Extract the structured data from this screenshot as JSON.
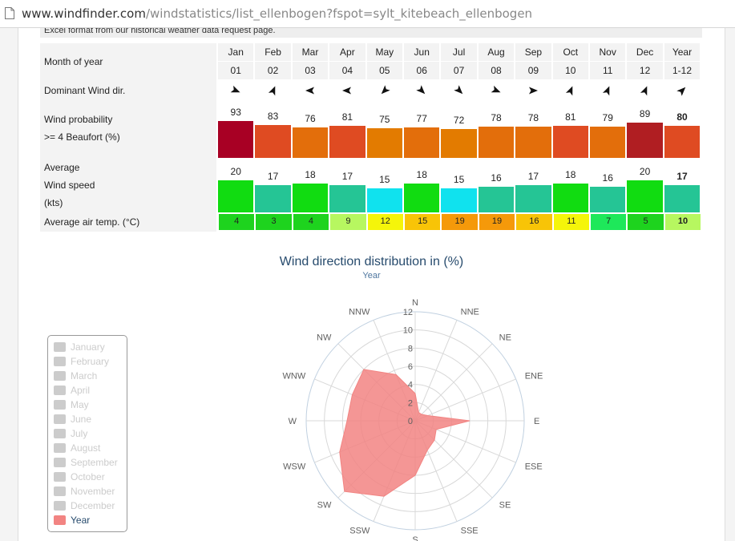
{
  "browser": {
    "url_host": "www.windfinder.com",
    "url_path": "/windstatistics/list_ellenbogen?fspot=sylt_kitebeach_ellenbogen"
  },
  "intro_text": "Excel format from our historical weather data request page.",
  "table": {
    "row_labels": {
      "month": "Month of year",
      "direction": "Dominant Wind dir.",
      "prob_1": "Wind probability",
      "prob_2": ">= 4 Beaufort (%)",
      "speed_1": "Average",
      "speed_2": "Wind speed",
      "speed_3": "(kts)",
      "temp": "Average air temp. (°C)"
    },
    "columns": [
      {
        "name": "Jan",
        "num": "01",
        "dir": "from-WNW",
        "prob": "93",
        "prob_color": "#a80024",
        "speed": "20",
        "speed_color": "#11dc11",
        "temp": "4",
        "temp_color": "#1ed31e"
      },
      {
        "name": "Feb",
        "num": "02",
        "dir": "from-SSW",
        "prob": "83",
        "prob_color": "#df4b22",
        "speed": "17",
        "speed_color": "#25c595",
        "temp": "3",
        "temp_color": "#1ed31e"
      },
      {
        "name": "Mar",
        "num": "03",
        "dir": "from-E",
        "prob": "76",
        "prob_color": "#e36e0b",
        "speed": "18",
        "speed_color": "#11dc11",
        "temp": "4",
        "temp_color": "#1ed31e"
      },
      {
        "name": "Apr",
        "num": "04",
        "dir": "from-E",
        "prob": "81",
        "prob_color": "#df4b22",
        "speed": "17",
        "speed_color": "#25c595",
        "temp": "9",
        "temp_color": "#b7f760"
      },
      {
        "name": "May",
        "num": "05",
        "dir": "from-NE",
        "prob": "75",
        "prob_color": "#e37b00",
        "speed": "15",
        "speed_color": "#10e2ee",
        "temp": "12",
        "temp_color": "#f5f50a"
      },
      {
        "name": "Jun",
        "num": "06",
        "dir": "from-NW",
        "prob": "77",
        "prob_color": "#e36e0b",
        "speed": "18",
        "speed_color": "#11dc11",
        "temp": "15",
        "temp_color": "#f8c407"
      },
      {
        "name": "Jul",
        "num": "07",
        "dir": "from-NW",
        "prob": "72",
        "prob_color": "#e37b00",
        "speed": "15",
        "speed_color": "#10e2ee",
        "temp": "19",
        "temp_color": "#f5990a"
      },
      {
        "name": "Aug",
        "num": "08",
        "dir": "from-WNW",
        "prob": "78",
        "prob_color": "#e36e0b",
        "speed": "16",
        "speed_color": "#25c595",
        "temp": "19",
        "temp_color": "#f5990a"
      },
      {
        "name": "Sep",
        "num": "09",
        "dir": "from-W",
        "prob": "78",
        "prob_color": "#e36e0b",
        "speed": "17",
        "speed_color": "#25c595",
        "temp": "16",
        "temp_color": "#f8c407"
      },
      {
        "name": "Oct",
        "num": "10",
        "dir": "from-SSW",
        "prob": "81",
        "prob_color": "#df4b22",
        "speed": "18",
        "speed_color": "#11dc11",
        "temp": "11",
        "temp_color": "#f5f50a"
      },
      {
        "name": "Nov",
        "num": "11",
        "dir": "from-SSW",
        "prob": "79",
        "prob_color": "#e36e0b",
        "speed": "16",
        "speed_color": "#25c595",
        "temp": "7",
        "temp_color": "#1ee85a"
      },
      {
        "name": "Dec",
        "num": "12",
        "dir": "from-SSW",
        "prob": "89",
        "prob_color": "#b01e22",
        "speed": "20",
        "speed_color": "#11dc11",
        "temp": "5",
        "temp_color": "#1ed31e"
      },
      {
        "name": "Year",
        "num": "1-12",
        "dir": "from-SW",
        "prob": "80",
        "prob_color": "#df4b22",
        "speed": "17",
        "speed_color": "#25c595",
        "temp": "10",
        "temp_color": "#b7f760",
        "bold": true
      }
    ]
  },
  "legend": {
    "items": [
      {
        "label": "January",
        "active": false
      },
      {
        "label": "February",
        "active": false
      },
      {
        "label": "March",
        "active": false
      },
      {
        "label": "April",
        "active": false
      },
      {
        "label": "May",
        "active": false
      },
      {
        "label": "June",
        "active": false
      },
      {
        "label": "July",
        "active": false
      },
      {
        "label": "August",
        "active": false
      },
      {
        "label": "September",
        "active": false
      },
      {
        "label": "October",
        "active": false
      },
      {
        "label": "November",
        "active": false
      },
      {
        "label": "December",
        "active": false
      },
      {
        "label": "Year",
        "active": true
      }
    ],
    "active_color": "#f28482",
    "inactive_color": "#cccccc"
  },
  "chart_data": {
    "type": "polar-area",
    "title": "Wind direction distribution in (%)",
    "subtitle": "Year",
    "directions": [
      "N",
      "NNE",
      "NE",
      "ENE",
      "E",
      "ESE",
      "SE",
      "SSE",
      "S",
      "SSW",
      "SW",
      "WSW",
      "W",
      "WNW",
      "NW",
      "NNW"
    ],
    "series": [
      {
        "name": "Year",
        "values": [
          3,
          1,
          1,
          1.5,
          6,
          2.5,
          3,
          3.5,
          6,
          9,
          11,
          9,
          7.5,
          7.5,
          8,
          5.5
        ],
        "color": "#f28482"
      }
    ],
    "radial_ticks": [
      "0",
      "2",
      "4",
      "6",
      "8",
      "10",
      "12"
    ],
    "rmax": 12
  }
}
